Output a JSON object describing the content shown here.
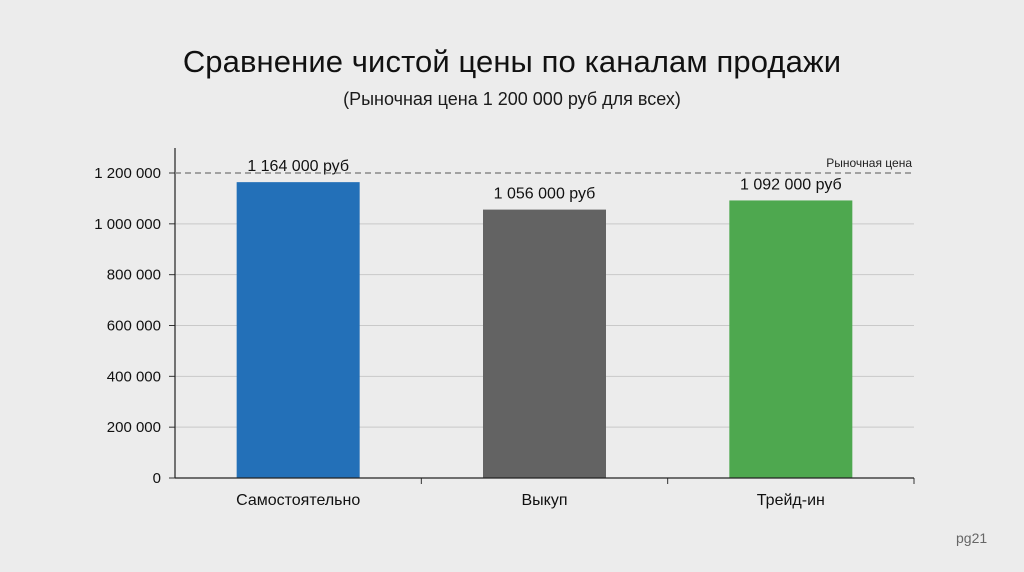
{
  "chart_data": {
    "type": "bar",
    "title": "Сравнение чистой цены по каналам продажи",
    "subtitle": "(Рыночная цена 1 200 000 руб для всех)",
    "categories": [
      "Самостоятельно",
      "Выкуп",
      "Трейд-ин"
    ],
    "values": [
      1164000,
      1056000,
      1092000
    ],
    "value_labels": [
      "1 164 000 руб",
      "1 056 000 руб",
      "1 092 000 руб"
    ],
    "bar_colors": [
      "#2370b8",
      "#636363",
      "#4ea84f"
    ],
    "ylim": [
      0,
      1200000
    ],
    "yticks": [
      0,
      200000,
      400000,
      600000,
      800000,
      1000000,
      1200000
    ],
    "ytick_labels": [
      "0",
      "200 000",
      "400 000",
      "600 000",
      "800 000",
      "1 000 000",
      "1 200 000"
    ],
    "reference_line": {
      "value": 1200000,
      "label": "Рыночная цена",
      "style": "dashed",
      "color": "#888888"
    },
    "grid": true,
    "legend": "none",
    "xlabel": "",
    "ylabel": ""
  },
  "footer": {
    "watermark": "pg21"
  }
}
